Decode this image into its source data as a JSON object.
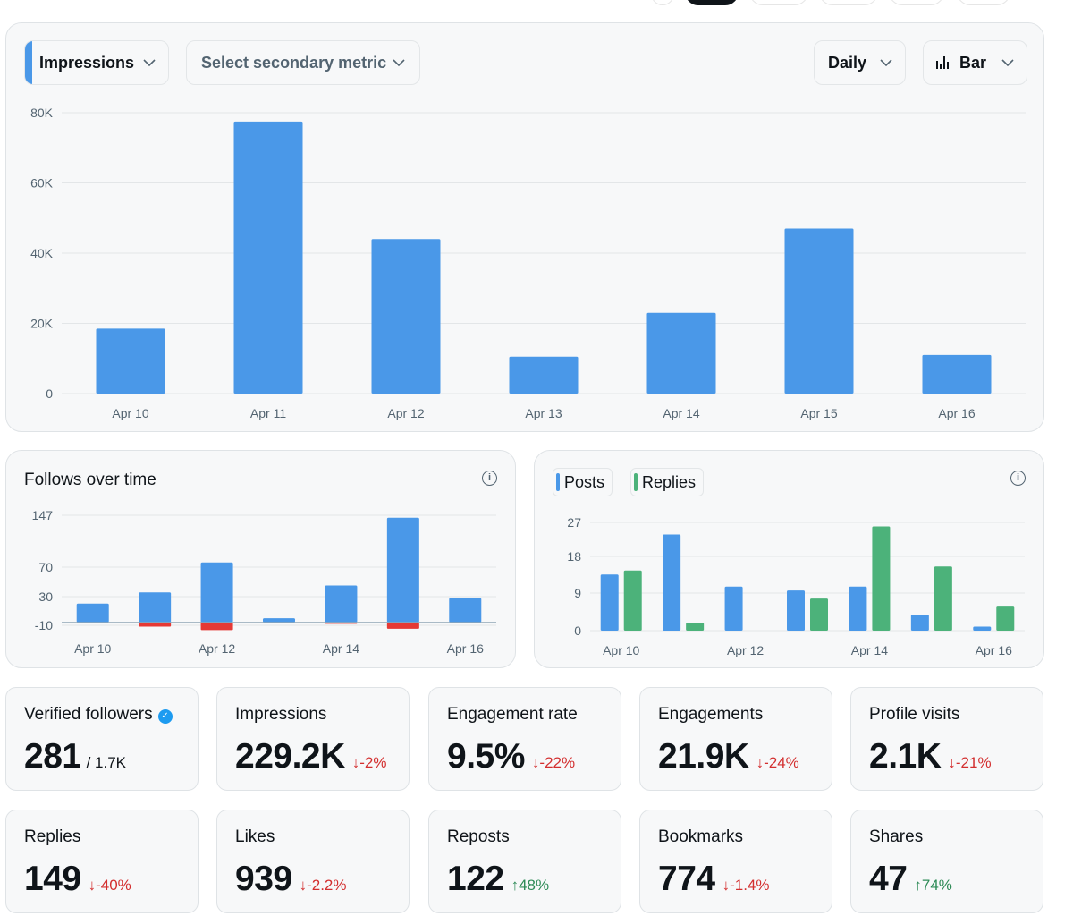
{
  "controls": {
    "primary_metric": "Impressions",
    "secondary_metric": "Select secondary metric",
    "range": "Daily",
    "chart_type": "Bar"
  },
  "colors": {
    "primary": "#4a98e8",
    "negative": "#e53935",
    "replies": "#4cb27a",
    "card_bg": "#f7f8f9"
  },
  "icons": {
    "dropdown": "chevron-down-icon",
    "chart_type": "bar-chart-icon",
    "info": "info-icon",
    "verified": "verified-badge-icon"
  },
  "follows_card": {
    "title": "Follows over time"
  },
  "posts_card": {
    "legend": [
      "Posts",
      "Replies"
    ]
  },
  "chart_data": [
    {
      "type": "bar",
      "categories": [
        "Apr 10",
        "Apr 11",
        "Apr 12",
        "Apr 13",
        "Apr 14",
        "Apr 15",
        "Apr 16"
      ],
      "series": [
        {
          "name": "Impressions",
          "values": [
            18500,
            77500,
            44000,
            10500,
            23000,
            47000,
            11000
          ]
        }
      ],
      "yticks": [
        "80K",
        "60K",
        "40K",
        "20K",
        "0"
      ],
      "ylim": [
        0,
        80000
      ],
      "grid": true
    },
    {
      "type": "bar",
      "title": "Follows over time",
      "categories": [
        "Apr 10",
        "Apr 11",
        "Apr 12",
        "Apr 13",
        "Apr 14",
        "Apr 15",
        "Apr 16"
      ],
      "xticks": [
        "Apr 10",
        "Apr 12",
        "Apr 14",
        "Apr 16"
      ],
      "series": [
        {
          "values": [
            27,
            43,
            86,
            6,
            53,
            150,
            35
          ]
        },
        {
          "values": [
            -1,
            -6,
            -11,
            -1,
            -2,
            -9,
            0
          ]
        }
      ],
      "yticks": [
        147,
        70,
        30,
        -10
      ],
      "ylim": [
        -10,
        147
      ],
      "grid": true
    },
    {
      "type": "bar",
      "categories": [
        "Apr 10",
        "Apr 11",
        "Apr 12",
        "Apr 13",
        "Apr 14",
        "Apr 15",
        "Apr 16"
      ],
      "xticks": [
        "Apr 10",
        "Apr 12",
        "Apr 14",
        "Apr 16"
      ],
      "series": [
        {
          "name": "Posts",
          "values": [
            14,
            24,
            11,
            10,
            11,
            4,
            1
          ]
        },
        {
          "name": "Replies",
          "values": [
            15,
            2,
            0,
            8,
            26,
            16,
            6
          ]
        }
      ],
      "yticks": [
        27,
        18,
        9,
        0
      ],
      "ylim": [
        0,
        27
      ],
      "grid": true
    }
  ],
  "stats": [
    {
      "label": "Verified followers",
      "value": "281",
      "sub": "/ 1.7K",
      "verified": true
    },
    {
      "label": "Impressions",
      "value": "229.2K",
      "change": "-2%",
      "dir": "down"
    },
    {
      "label": "Engagement rate",
      "value": "9.5%",
      "change": "-22%",
      "dir": "down"
    },
    {
      "label": "Engagements",
      "value": "21.9K",
      "change": "-24%",
      "dir": "down"
    },
    {
      "label": "Profile visits",
      "value": "2.1K",
      "change": "-21%",
      "dir": "down"
    },
    {
      "label": "Replies",
      "value": "149",
      "change": "-40%",
      "dir": "down"
    },
    {
      "label": "Likes",
      "value": "939",
      "change": "-2.2%",
      "dir": "down"
    },
    {
      "label": "Reposts",
      "value": "122",
      "change": "48%",
      "dir": "up"
    },
    {
      "label": "Bookmarks",
      "value": "774",
      "change": "-1.4%",
      "dir": "down"
    },
    {
      "label": "Shares",
      "value": "47",
      "change": "74%",
      "dir": "up"
    }
  ]
}
